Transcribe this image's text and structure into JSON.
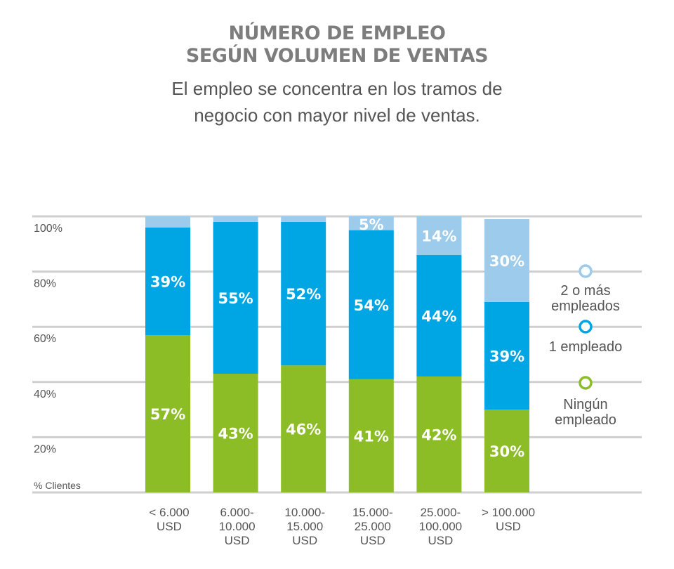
{
  "header": {
    "title_line1": "NÚMERO DE EMPLEO",
    "title_line2": "SEGÚN VOLUMEN DE VENTAS",
    "subtitle_line1": "El empleo se concentra en los tramos de",
    "subtitle_line2": "negocio con mayor nivel de ventas."
  },
  "chart_data": {
    "type": "bar",
    "stacked": true,
    "ylabel": "% Clientes",
    "ylim": [
      0,
      100
    ],
    "yticks": [
      20,
      40,
      60,
      80,
      100
    ],
    "ytick_labels": [
      "20%",
      "40%",
      "60%",
      "80%",
      "100%"
    ],
    "grid": true,
    "legend_position": "right",
    "categories": [
      [
        "< 6.000",
        "USD"
      ],
      [
        "6.000-",
        "10.000",
        "USD"
      ],
      [
        "10.000-",
        "15.000",
        "USD"
      ],
      [
        "15.000-",
        "25.000",
        "USD"
      ],
      [
        "25.000-",
        "100.000",
        "USD"
      ],
      [
        "> 100.000",
        "USD"
      ]
    ],
    "series": [
      {
        "name": "Ningún empleado",
        "legend_lines": [
          "Ningún",
          "empleado"
        ],
        "color": "#8cbd27",
        "values": [
          57,
          43,
          46,
          41,
          42,
          30
        ],
        "labels": [
          "57%",
          "43%",
          "46%",
          "41%",
          "42%",
          "30%"
        ]
      },
      {
        "name": "1 empleado",
        "legend_lines": [
          "1 empleado"
        ],
        "color": "#00a5e3",
        "values": [
          39,
          55,
          52,
          54,
          44,
          39
        ],
        "labels": [
          "39%",
          "55%",
          "52%",
          "54%",
          "44%",
          "39%"
        ]
      },
      {
        "name": "2 o más empleados",
        "legend_lines": [
          "2 o más",
          "empleados"
        ],
        "color": "#9ccbec",
        "values": [
          4,
          2,
          2,
          5,
          14,
          30
        ],
        "labels": [
          "",
          "",
          "",
          "5%",
          "14%",
          "30%"
        ]
      }
    ]
  }
}
